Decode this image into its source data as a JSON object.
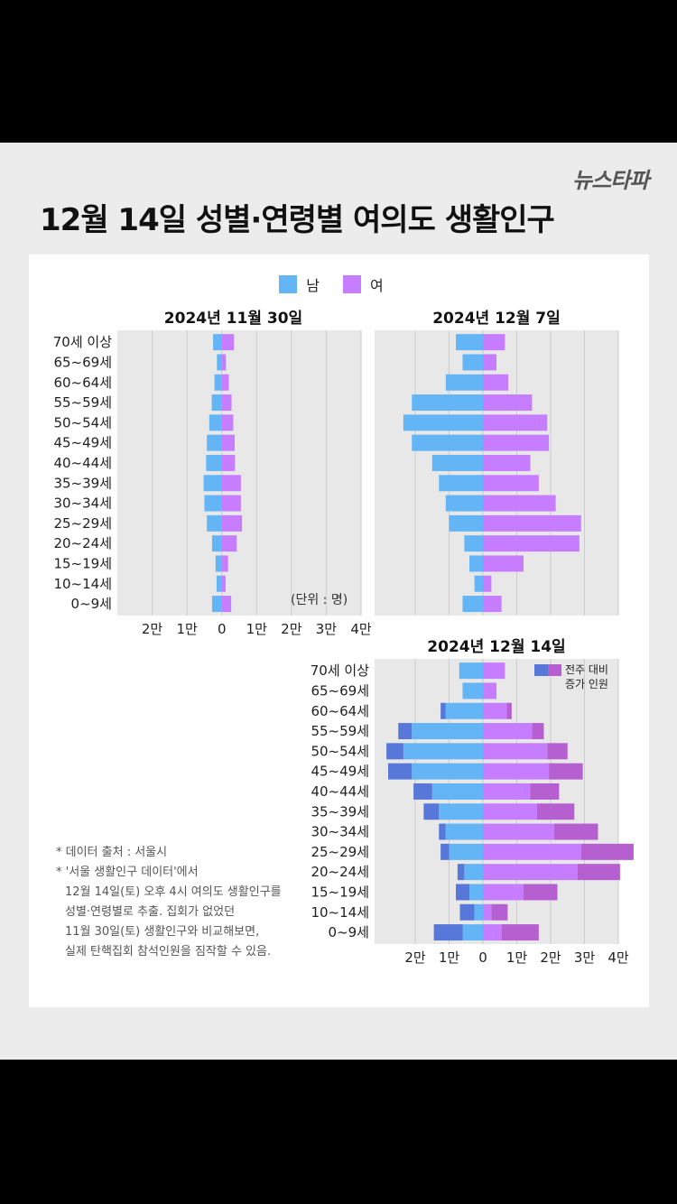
{
  "logo": "뉴스타파",
  "main_title": "12월 14일 성별·연령별 여의도 생활인구",
  "legend": {
    "male": "남",
    "female": "여"
  },
  "colors": {
    "male": "#64b5f6",
    "female": "#c77dff",
    "male_increase": "#5778d8",
    "female_increase": "#b55fd0",
    "grid": "#cccccc",
    "plot_bg": "#e8e8e8"
  },
  "unit_label": "(단위 : 명)",
  "increase_legend": {
    "line1": "전주 대비",
    "line2": "증가 인원"
  },
  "notes": [
    "*  데이터 출처 : 서울시",
    "*  '서울 생활인구 데이터'에서",
    "12월 14일(토) 오후 4시 여의도 생활인구를",
    "성별·연령별로 추출. 집회가 없었던",
    "11월 30일(토) 생활인구와 비교해보면,",
    "실제 탄핵집회 참석인원을 짐작할 수 있음."
  ],
  "chart_data": [
    {
      "type": "bar",
      "orientation": "horizontal-population-pyramid",
      "title": "2024년 11월 30일",
      "categories": [
        "70세 이상",
        "65~69세",
        "60~64세",
        "55~59세",
        "50~54세",
        "45~49세",
        "40~44세",
        "35~39세",
        "30~34세",
        "25~29세",
        "20~24세",
        "15~19세",
        "10~14세",
        "0~9세"
      ],
      "series": [
        {
          "name": "남",
          "values": [
            2500,
            1400,
            2100,
            2900,
            3600,
            4300,
            4500,
            5200,
            5000,
            4300,
            2800,
            1800,
            1500,
            2800
          ]
        },
        {
          "name": "여",
          "values": [
            3500,
            1200,
            2000,
            2800,
            3300,
            3700,
            3800,
            5500,
            5500,
            5800,
            4300,
            1800,
            1100,
            2700
          ]
        }
      ],
      "xlim": [
        -30000,
        40000
      ],
      "xtick_values": [
        -20000,
        -10000,
        0,
        10000,
        20000,
        30000,
        40000
      ],
      "xtick_labels": [
        "2만",
        "1만",
        "0",
        "1만",
        "2만",
        "3만",
        "4만"
      ]
    },
    {
      "type": "bar",
      "orientation": "horizontal-population-pyramid",
      "title": "2024년 12월 7일",
      "categories": [
        "70세 이상",
        "65~69세",
        "60~64세",
        "55~59세",
        "50~54세",
        "45~49세",
        "40~44세",
        "35~39세",
        "30~34세",
        "25~29세",
        "20~24세",
        "15~19세",
        "10~14세",
        "0~9세"
      ],
      "series": [
        {
          "name": "남",
          "values": [
            8000,
            6000,
            11000,
            21000,
            23500,
            21000,
            15000,
            13000,
            11000,
            10000,
            5500,
            4000,
            2500,
            6000
          ]
        },
        {
          "name": "여",
          "values": [
            6500,
            4000,
            7500,
            14500,
            19000,
            19500,
            14000,
            16500,
            21500,
            29000,
            28500,
            12000,
            2500,
            5500
          ]
        }
      ],
      "xlim": [
        -32000,
        40000
      ],
      "xtick_values": [
        -20000,
        -10000,
        0,
        10000,
        20000,
        30000,
        40000
      ],
      "xtick_labels": [
        "2만",
        "1만",
        "0",
        "1만",
        "2만",
        "3만",
        "4만"
      ]
    },
    {
      "type": "bar",
      "orientation": "horizontal-population-pyramid",
      "title": "2024년 12월 14일",
      "categories": [
        "70세 이상",
        "65~69세",
        "60~64세",
        "55~59세",
        "50~54세",
        "45~49세",
        "40~44세",
        "35~39세",
        "30~34세",
        "25~29세",
        "20~24세",
        "15~19세",
        "10~14세",
        "0~9세"
      ],
      "series": [
        {
          "name": "남",
          "values": [
            7000,
            6000,
            11000,
            21000,
            23500,
            21000,
            15000,
            13000,
            11000,
            10000,
            5500,
            4000,
            2500,
            6000
          ]
        },
        {
          "name": "여",
          "values": [
            6500,
            4000,
            7000,
            14500,
            19000,
            19500,
            14000,
            16000,
            21000,
            29000,
            28000,
            12000,
            2500,
            5500
          ]
        },
        {
          "name": "남 전주 대비 증가 인원",
          "values": [
            0,
            0,
            1500,
            4000,
            5000,
            7000,
            5500,
            4500,
            2000,
            2500,
            2000,
            4000,
            4300,
            8500
          ]
        },
        {
          "name": "여 전주 대비 증가 인원",
          "values": [
            0,
            0,
            1500,
            3500,
            6000,
            10000,
            8500,
            11000,
            13000,
            15500,
            12500,
            10000,
            4800,
            11000
          ]
        }
      ],
      "xlim": [
        -32000,
        40000
      ],
      "xtick_values": [
        -20000,
        -10000,
        0,
        10000,
        20000,
        30000,
        40000
      ],
      "xtick_labels": [
        "2만",
        "1만",
        "0",
        "1만",
        "2만",
        "3만",
        "4만"
      ]
    }
  ]
}
